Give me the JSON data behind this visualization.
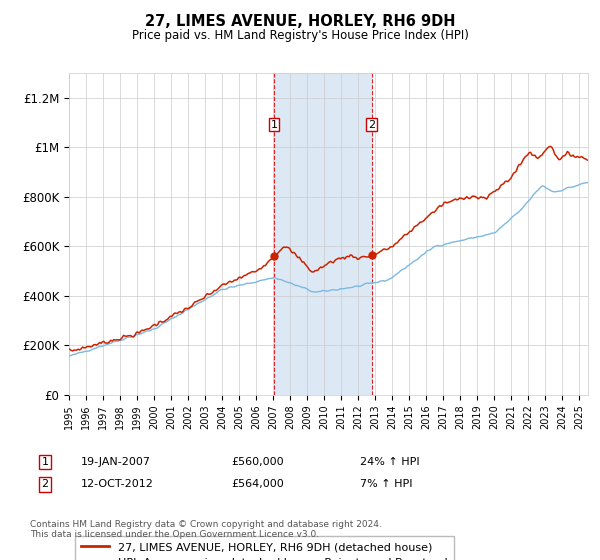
{
  "title": "27, LIMES AVENUE, HORLEY, RH6 9DH",
  "subtitle": "Price paid vs. HM Land Registry's House Price Index (HPI)",
  "red_label": "27, LIMES AVENUE, HORLEY, RH6 9DH (detached house)",
  "blue_label": "HPI: Average price, detached house, Reigate and Banstead",
  "footnote": "Contains HM Land Registry data © Crown copyright and database right 2024.\nThis data is licensed under the Open Government Licence v3.0.",
  "sale1_date": "19-JAN-2007",
  "sale1_price": "£560,000",
  "sale1_hpi": "24% ↑ HPI",
  "sale2_date": "12-OCT-2012",
  "sale2_price": "£564,000",
  "sale2_hpi": "7% ↑ HPI",
  "ylim": [
    0,
    1300000
  ],
  "yticks": [
    0,
    200000,
    400000,
    600000,
    800000,
    1000000,
    1200000
  ],
  "ytick_labels": [
    "£0",
    "£200K",
    "£400K",
    "£600K",
    "£800K",
    "£1M",
    "£1.2M"
  ],
  "hpi_color": "#7cb9e0",
  "price_color": "#cc2200",
  "shade_color": "#dce9f5",
  "sale_marker_color": "#cc2200",
  "background_color": "#ffffff",
  "grid_color": "#cccccc"
}
